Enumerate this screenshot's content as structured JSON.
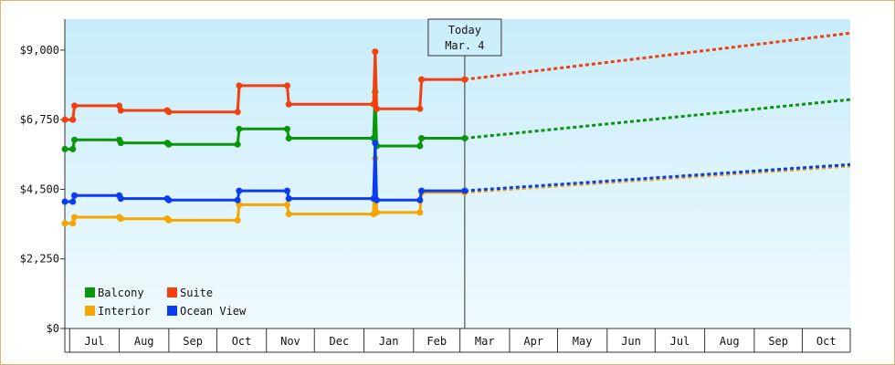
{
  "chart_data": {
    "type": "line",
    "title": "",
    "xlabel": "",
    "ylabel": "",
    "ylim": [
      0,
      10000
    ],
    "y_ticks": [
      {
        "value": 0,
        "label": "$0"
      },
      {
        "value": 2250,
        "label": "$2,250"
      },
      {
        "value": 4500,
        "label": "$4,500"
      },
      {
        "value": 6750,
        "label": "$6,750"
      },
      {
        "value": 9000,
        "label": "$9,000"
      }
    ],
    "x_range": [
      "2023-06-28",
      "2024-10-31"
    ],
    "x_ticks": [
      {
        "label": "Jul",
        "start": "2023-07-01",
        "end": "2023-08-01"
      },
      {
        "label": "Aug",
        "start": "2023-08-01",
        "end": "2023-09-01"
      },
      {
        "label": "Sep",
        "start": "2023-09-01",
        "end": "2023-10-01"
      },
      {
        "label": "Oct",
        "start": "2023-10-01",
        "end": "2023-11-01"
      },
      {
        "label": "Nov",
        "start": "2023-11-01",
        "end": "2023-12-01"
      },
      {
        "label": "Dec",
        "start": "2023-12-01",
        "end": "2024-01-01"
      },
      {
        "label": "Jan",
        "start": "2024-01-01",
        "end": "2024-02-01"
      },
      {
        "label": "Feb",
        "start": "2024-02-01",
        "end": "2024-03-01"
      },
      {
        "label": "Mar",
        "start": "2024-03-01",
        "end": "2024-04-01"
      },
      {
        "label": "Apr",
        "start": "2024-04-01",
        "end": "2024-05-01"
      },
      {
        "label": "May",
        "start": "2024-05-01",
        "end": "2024-06-01"
      },
      {
        "label": "Jun",
        "start": "2024-06-01",
        "end": "2024-07-01"
      },
      {
        "label": "Jul",
        "start": "2024-07-01",
        "end": "2024-08-01"
      },
      {
        "label": "Aug",
        "start": "2024-08-01",
        "end": "2024-09-01"
      },
      {
        "label": "Sep",
        "start": "2024-09-01",
        "end": "2024-10-01"
      },
      {
        "label": "Oct",
        "start": "2024-10-01",
        "end": "2024-10-31"
      }
    ],
    "today": {
      "line1": "Today",
      "line2": "Mar. 4",
      "date": "2024-03-04"
    },
    "grid": false,
    "legend_placement": "bottom-left",
    "series": [
      {
        "name": "Balcony",
        "color": "#0a960a",
        "points": [
          {
            "date": "2023-06-28",
            "value": 5800
          },
          {
            "date": "2023-07-03",
            "value": 5800
          },
          {
            "date": "2023-07-04",
            "value": 6100
          },
          {
            "date": "2023-08-01",
            "value": 6100
          },
          {
            "date": "2023-08-02",
            "value": 6000
          },
          {
            "date": "2023-08-31",
            "value": 6000
          },
          {
            "date": "2023-09-01",
            "value": 5950
          },
          {
            "date": "2023-10-14",
            "value": 5950
          },
          {
            "date": "2023-10-15",
            "value": 6450
          },
          {
            "date": "2023-11-14",
            "value": 6450
          },
          {
            "date": "2023-11-15",
            "value": 6150
          },
          {
            "date": "2024-01-07",
            "value": 6150
          },
          {
            "date": "2024-01-08",
            "value": 7650
          },
          {
            "date": "2024-01-09",
            "value": 5900
          },
          {
            "date": "2024-02-05",
            "value": 5900
          },
          {
            "date": "2024-02-06",
            "value": 6150
          },
          {
            "date": "2024-03-04",
            "value": 6150
          }
        ],
        "projection": [
          {
            "date": "2024-03-04",
            "value": 6150
          },
          {
            "date": "2024-10-31",
            "value": 7400
          }
        ]
      },
      {
        "name": "Suite",
        "color": "#f04010",
        "points": [
          {
            "date": "2023-06-28",
            "value": 6750
          },
          {
            "date": "2023-07-03",
            "value": 6750
          },
          {
            "date": "2023-07-04",
            "value": 7200
          },
          {
            "date": "2023-08-01",
            "value": 7200
          },
          {
            "date": "2023-08-02",
            "value": 7050
          },
          {
            "date": "2023-08-31",
            "value": 7050
          },
          {
            "date": "2023-09-01",
            "value": 7000
          },
          {
            "date": "2023-10-14",
            "value": 7000
          },
          {
            "date": "2023-10-15",
            "value": 7850
          },
          {
            "date": "2023-11-14",
            "value": 7850
          },
          {
            "date": "2023-11-15",
            "value": 7250
          },
          {
            "date": "2024-01-07",
            "value": 7250
          },
          {
            "date": "2024-01-08",
            "value": 8950
          },
          {
            "date": "2024-01-09",
            "value": 7100
          },
          {
            "date": "2024-02-05",
            "value": 7100
          },
          {
            "date": "2024-02-06",
            "value": 8050
          },
          {
            "date": "2024-03-04",
            "value": 8050
          }
        ],
        "projection": [
          {
            "date": "2024-03-04",
            "value": 8050
          },
          {
            "date": "2024-10-31",
            "value": 9550
          }
        ]
      },
      {
        "name": "Interior",
        "color": "#f5a500",
        "points": [
          {
            "date": "2023-06-28",
            "value": 3400
          },
          {
            "date": "2023-07-03",
            "value": 3400
          },
          {
            "date": "2023-07-04",
            "value": 3600
          },
          {
            "date": "2023-08-01",
            "value": 3600
          },
          {
            "date": "2023-08-02",
            "value": 3550
          },
          {
            "date": "2023-08-31",
            "value": 3550
          },
          {
            "date": "2023-09-01",
            "value": 3500
          },
          {
            "date": "2023-10-14",
            "value": 3500
          },
          {
            "date": "2023-10-15",
            "value": 4000
          },
          {
            "date": "2023-11-14",
            "value": 4000
          },
          {
            "date": "2023-11-15",
            "value": 3700
          },
          {
            "date": "2024-01-07",
            "value": 3700
          },
          {
            "date": "2024-01-08",
            "value": 5500
          },
          {
            "date": "2024-01-09",
            "value": 3750
          },
          {
            "date": "2024-02-05",
            "value": 3750
          },
          {
            "date": "2024-02-06",
            "value": 4400
          },
          {
            "date": "2024-03-04",
            "value": 4400
          }
        ],
        "projection": [
          {
            "date": "2024-03-04",
            "value": 4400
          },
          {
            "date": "2024-10-31",
            "value": 5250
          }
        ]
      },
      {
        "name": "Ocean View",
        "color": "#0a3cf0",
        "points": [
          {
            "date": "2023-06-28",
            "value": 4100
          },
          {
            "date": "2023-07-03",
            "value": 4100
          },
          {
            "date": "2023-07-04",
            "value": 4300
          },
          {
            "date": "2023-08-01",
            "value": 4300
          },
          {
            "date": "2023-08-02",
            "value": 4200
          },
          {
            "date": "2023-08-31",
            "value": 4200
          },
          {
            "date": "2023-09-01",
            "value": 4150
          },
          {
            "date": "2023-10-14",
            "value": 4150
          },
          {
            "date": "2023-10-15",
            "value": 4450
          },
          {
            "date": "2023-11-14",
            "value": 4450
          },
          {
            "date": "2023-11-15",
            "value": 4200
          },
          {
            "date": "2024-01-07",
            "value": 4200
          },
          {
            "date": "2024-01-08",
            "value": 6000
          },
          {
            "date": "2024-01-09",
            "value": 4150
          },
          {
            "date": "2024-02-05",
            "value": 4150
          },
          {
            "date": "2024-02-06",
            "value": 4450
          },
          {
            "date": "2024-03-04",
            "value": 4450
          }
        ],
        "projection": [
          {
            "date": "2024-03-04",
            "value": 4450
          },
          {
            "date": "2024-10-31",
            "value": 5300
          }
        ]
      }
    ]
  },
  "style": {
    "frame_border_color": "#e8b070",
    "plot_gradient_top": "#c8ecfa",
    "plot_gradient_bottom": "#f0fafe",
    "axis_color": "#333333"
  }
}
